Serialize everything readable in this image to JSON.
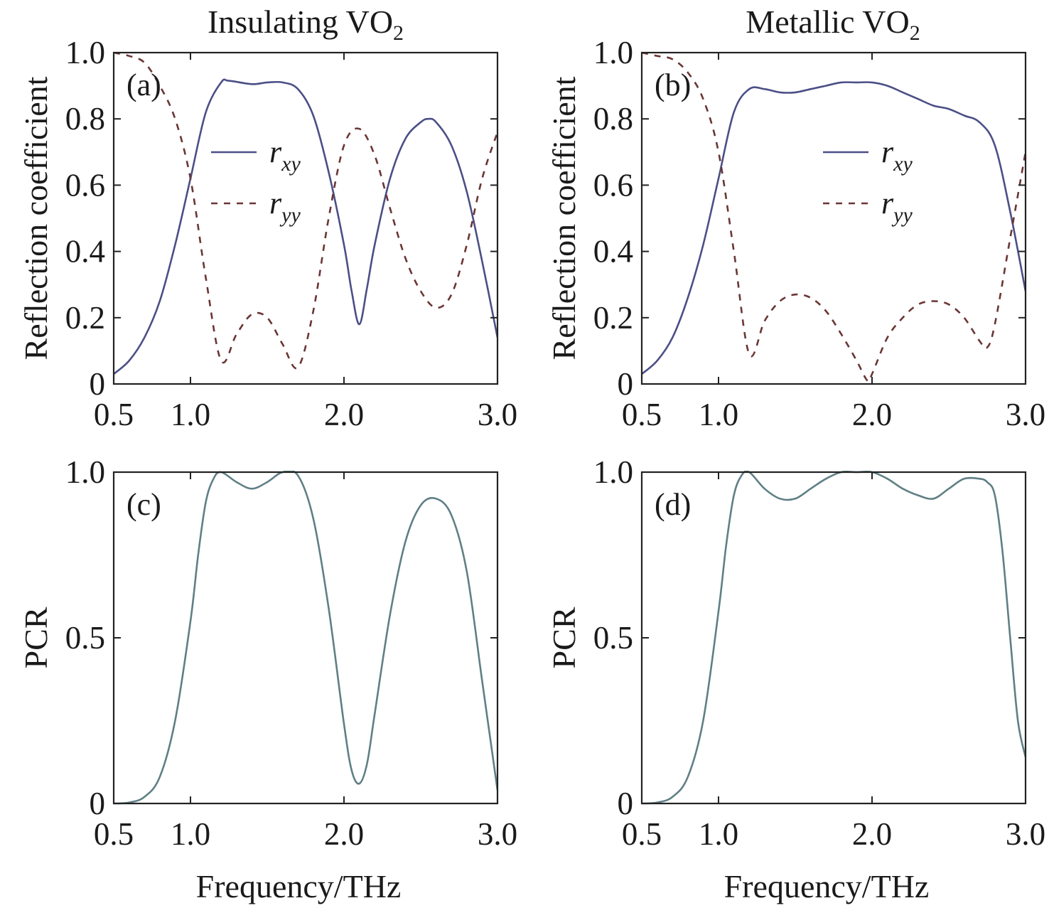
{
  "colors": {
    "rxy": "#4b4f86",
    "ryy": "#6b3535",
    "pcr": "#5f7f86"
  },
  "column_titles": {
    "left": "Insulating VO",
    "left_sub": "2",
    "right": "Metallic VO",
    "right_sub": "2"
  },
  "chart_data": [
    {
      "panel": "(a)",
      "type": "line",
      "ylabel": "Reflection coefficient",
      "xlabel": "",
      "xlim": [
        0.5,
        3.0
      ],
      "ylim": [
        0,
        1.0
      ],
      "xticks": [
        "0.5",
        "1.0",
        "2.0",
        "3.0"
      ],
      "xtick_values": [
        0.5,
        1.0,
        2.0,
        3.0
      ],
      "yticks": [
        "0",
        "0.2",
        "0.4",
        "0.6",
        "0.8",
        "1.0"
      ],
      "ytick_values": [
        0,
        0.2,
        0.4,
        0.6,
        0.8,
        1.0
      ],
      "legend": {
        "position": "center-left",
        "entries": [
          {
            "base": "r",
            "sub": "xy",
            "style": "solid"
          },
          {
            "base": "r",
            "sub": "yy",
            "style": "dashed"
          }
        ]
      },
      "series": [
        {
          "name": "rxy",
          "style": "solid",
          "x": [
            0.5,
            0.6,
            0.7,
            0.8,
            0.9,
            1.0,
            1.1,
            1.2,
            1.25,
            1.4,
            1.5,
            1.6,
            1.7,
            1.8,
            1.9,
            2.0,
            2.05,
            2.1,
            2.15,
            2.2,
            2.3,
            2.4,
            2.5,
            2.55,
            2.6,
            2.7,
            2.8,
            2.9,
            3.0
          ],
          "y": [
            0.03,
            0.07,
            0.14,
            0.25,
            0.42,
            0.62,
            0.82,
            0.91,
            0.915,
            0.905,
            0.91,
            0.91,
            0.89,
            0.81,
            0.64,
            0.42,
            0.28,
            0.18,
            0.29,
            0.42,
            0.62,
            0.74,
            0.79,
            0.8,
            0.79,
            0.72,
            0.58,
            0.37,
            0.14
          ]
        },
        {
          "name": "ryy",
          "style": "dashed",
          "x": [
            0.5,
            0.6,
            0.7,
            0.8,
            0.9,
            1.0,
            1.1,
            1.2,
            1.3,
            1.4,
            1.5,
            1.6,
            1.7,
            1.8,
            1.9,
            2.0,
            2.1,
            2.2,
            2.3,
            2.4,
            2.5,
            2.6,
            2.7,
            2.8,
            2.9,
            3.0
          ],
          "y": [
            1.0,
            0.99,
            0.97,
            0.9,
            0.8,
            0.62,
            0.32,
            0.07,
            0.15,
            0.21,
            0.2,
            0.12,
            0.05,
            0.22,
            0.5,
            0.72,
            0.77,
            0.69,
            0.53,
            0.38,
            0.28,
            0.23,
            0.27,
            0.42,
            0.62,
            0.76
          ]
        }
      ]
    },
    {
      "panel": "(b)",
      "type": "line",
      "ylabel": "Reflection coefficient",
      "xlabel": "",
      "xlim": [
        0.5,
        3.0
      ],
      "ylim": [
        0,
        1.0
      ],
      "xticks": [
        "0.5",
        "1.0",
        "2.0",
        "3.0"
      ],
      "xtick_values": [
        0.5,
        1.0,
        2.0,
        3.0
      ],
      "yticks": [
        "0",
        "0.2",
        "0.4",
        "0.6",
        "0.8",
        "1.0"
      ],
      "ytick_values": [
        0,
        0.2,
        0.4,
        0.6,
        0.8,
        1.0
      ],
      "legend": {
        "position": "center-right",
        "entries": [
          {
            "base": "r",
            "sub": "xy",
            "style": "solid"
          },
          {
            "base": "r",
            "sub": "yy",
            "style": "dashed"
          }
        ]
      },
      "series": [
        {
          "name": "rxy",
          "style": "solid",
          "x": [
            0.5,
            0.6,
            0.7,
            0.8,
            0.9,
            1.0,
            1.1,
            1.2,
            1.3,
            1.4,
            1.5,
            1.6,
            1.7,
            1.8,
            1.9,
            2.0,
            2.1,
            2.2,
            2.3,
            2.4,
            2.5,
            2.6,
            2.7,
            2.8,
            2.9,
            3.0
          ],
          "y": [
            0.03,
            0.07,
            0.14,
            0.26,
            0.42,
            0.62,
            0.82,
            0.89,
            0.89,
            0.88,
            0.88,
            0.89,
            0.9,
            0.91,
            0.91,
            0.91,
            0.9,
            0.88,
            0.86,
            0.84,
            0.83,
            0.81,
            0.79,
            0.72,
            0.52,
            0.28
          ]
        },
        {
          "name": "ryy",
          "style": "dashed",
          "x": [
            0.5,
            0.6,
            0.7,
            0.8,
            0.9,
            1.0,
            1.1,
            1.2,
            1.3,
            1.4,
            1.5,
            1.6,
            1.7,
            1.8,
            1.9,
            1.97,
            2.0,
            2.1,
            2.2,
            2.3,
            2.4,
            2.5,
            2.6,
            2.7,
            2.75,
            2.8,
            2.9,
            3.0
          ],
          "y": [
            1.0,
            0.99,
            0.98,
            0.94,
            0.86,
            0.7,
            0.4,
            0.09,
            0.19,
            0.25,
            0.27,
            0.26,
            0.22,
            0.15,
            0.07,
            0.01,
            0.03,
            0.14,
            0.2,
            0.24,
            0.25,
            0.24,
            0.2,
            0.13,
            0.11,
            0.18,
            0.44,
            0.7
          ]
        }
      ]
    },
    {
      "panel": "(c)",
      "type": "line",
      "ylabel": "PCR",
      "xlabel": "Frequency/THz",
      "xlim": [
        0.5,
        3.0
      ],
      "ylim": [
        0,
        1.0
      ],
      "xticks": [
        "0.5",
        "1.0",
        "2.0",
        "3.0"
      ],
      "xtick_values": [
        0.5,
        1.0,
        2.0,
        3.0
      ],
      "yticks": [
        "0",
        "0.5",
        "1.0"
      ],
      "ytick_values": [
        0,
        0.5,
        1.0
      ],
      "series": [
        {
          "name": "PCR",
          "style": "solid",
          "x": [
            0.5,
            0.6,
            0.7,
            0.8,
            0.9,
            1.0,
            1.05,
            1.1,
            1.15,
            1.2,
            1.3,
            1.4,
            1.5,
            1.6,
            1.7,
            1.8,
            1.9,
            2.0,
            2.05,
            2.1,
            2.15,
            2.2,
            2.3,
            2.4,
            2.5,
            2.6,
            2.7,
            2.8,
            2.9,
            3.0
          ],
          "y": [
            0.0,
            0.003,
            0.02,
            0.08,
            0.25,
            0.55,
            0.75,
            0.91,
            0.98,
            1.0,
            0.97,
            0.95,
            0.97,
            1.0,
            0.99,
            0.86,
            0.59,
            0.24,
            0.1,
            0.06,
            0.12,
            0.27,
            0.57,
            0.79,
            0.9,
            0.92,
            0.87,
            0.7,
            0.37,
            0.04
          ]
        }
      ]
    },
    {
      "panel": "(d)",
      "type": "line",
      "ylabel": "PCR",
      "xlabel": "Frequency/THz",
      "xlim": [
        0.5,
        3.0
      ],
      "ylim": [
        0,
        1.0
      ],
      "xticks": [
        "0.5",
        "1.0",
        "2.0",
        "3.0"
      ],
      "xtick_values": [
        0.5,
        1.0,
        2.0,
        3.0
      ],
      "yticks": [
        "0",
        "0.5",
        "1.0"
      ],
      "ytick_values": [
        0,
        0.5,
        1.0
      ],
      "series": [
        {
          "name": "PCR",
          "style": "solid",
          "x": [
            0.5,
            0.6,
            0.7,
            0.8,
            0.9,
            1.0,
            1.05,
            1.1,
            1.15,
            1.2,
            1.3,
            1.4,
            1.5,
            1.6,
            1.7,
            1.8,
            1.9,
            2.0,
            2.1,
            2.2,
            2.3,
            2.4,
            2.5,
            2.6,
            2.7,
            2.75,
            2.8,
            2.85,
            2.9,
            2.95,
            3.0
          ],
          "y": [
            0.0,
            0.003,
            0.02,
            0.08,
            0.25,
            0.58,
            0.78,
            0.93,
            0.99,
            1.0,
            0.95,
            0.92,
            0.92,
            0.95,
            0.98,
            1.0,
            1.0,
            1.0,
            0.98,
            0.95,
            0.93,
            0.92,
            0.95,
            0.98,
            0.98,
            0.97,
            0.93,
            0.76,
            0.5,
            0.25,
            0.14
          ]
        }
      ]
    }
  ]
}
